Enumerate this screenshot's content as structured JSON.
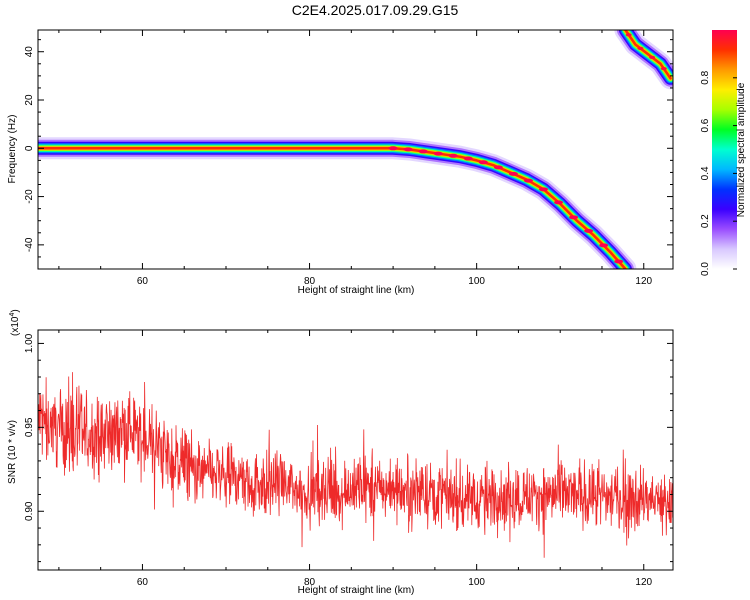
{
  "title": "C2E4.2025.017.09.29.G15",
  "colors": {
    "trace": "#ee2a2a",
    "colormap": [
      "#ffffff",
      "#d8c8ff",
      "#9a4dff",
      "#3a00ff",
      "#0032ff",
      "#00b8ff",
      "#00ffd0",
      "#00ff22",
      "#a8ff00",
      "#ffee00",
      "#ff9a00",
      "#ff3000",
      "#ff0050"
    ]
  },
  "chart_data": [
    {
      "type": "heatmap",
      "xlabel": "Height of straight line (km)",
      "ylabel": "Frequency (Hz)",
      "xlim": [
        47.5,
        123.5
      ],
      "ylim": [
        -50,
        49
      ],
      "xticks": [
        60,
        80,
        100,
        120
      ],
      "xtick_labels": [
        "60",
        "80",
        "100",
        "120"
      ],
      "yticks": [
        -40,
        -20,
        0,
        20,
        40
      ],
      "ytick_labels": [
        "-40",
        "-20",
        "0",
        "20",
        "40"
      ],
      "ridge": {
        "x": [
          47.5,
          60,
          70,
          80,
          85,
          88,
          90,
          92,
          94,
          96,
          98,
          100,
          102,
          104,
          106,
          108,
          110,
          112,
          114,
          116,
          117.8
        ],
        "y": [
          0,
          0,
          0,
          0,
          0,
          0,
          0,
          -0.5,
          -1.5,
          -2.5,
          -3.5,
          -5,
          -7,
          -10,
          -13,
          -17,
          -23,
          -30,
          -36,
          -43,
          -50
        ]
      },
      "ridge2": {
        "x": [
          117.8,
          119,
          120.5,
          122,
          123.2
        ],
        "y": [
          49,
          43,
          39,
          35,
          29
        ]
      },
      "colorbar": {
        "label": "Normalized spectral amplitude",
        "ticks": [
          0.0,
          0.2,
          0.4,
          0.6,
          0.8
        ],
        "tick_labels": [
          "0.0",
          "0.2",
          "0.4",
          "0.6",
          "0.8"
        ],
        "range": [
          0,
          1
        ]
      },
      "grid": false
    },
    {
      "type": "line",
      "xlabel": "Height of straight line (km)",
      "ylabel": "SNR (10 * v/v)",
      "exponent_label": "(x10",
      "exponent_sup": "4",
      "exponent_close": ")",
      "xlim": [
        47.5,
        123.5
      ],
      "ylim": [
        0.865,
        1.008
      ],
      "xticks": [
        60,
        80,
        100,
        120
      ],
      "xtick_labels": [
        "60",
        "80",
        "100",
        "120"
      ],
      "yticks": [
        0.9,
        0.95,
        1.0
      ],
      "ytick_labels": [
        "0.90",
        "0.95",
        "1.00"
      ],
      "trend": {
        "x": [
          47.5,
          50,
          53,
          56,
          58,
          60,
          62,
          64,
          66,
          70,
          75,
          80,
          85,
          90,
          95,
          100,
          105,
          110,
          115,
          120,
          123.5
        ],
        "y": [
          0.955,
          0.95,
          0.945,
          0.946,
          0.95,
          0.944,
          0.937,
          0.93,
          0.925,
          0.92,
          0.916,
          0.912,
          0.913,
          0.914,
          0.911,
          0.908,
          0.909,
          0.91,
          0.909,
          0.907,
          0.905
        ]
      },
      "noise_amplitude": 0.012,
      "grid": false
    }
  ]
}
